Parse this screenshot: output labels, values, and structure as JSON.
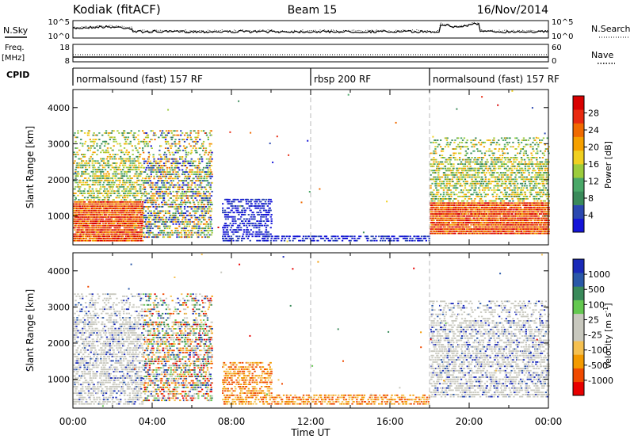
{
  "header": {
    "station": "Kodiak (fitACF)",
    "beam": "Beam 15",
    "date": "16/Nov/2014"
  },
  "top_panels": {
    "nsky": {
      "label": "N.Sky",
      "right_label": "N.Search",
      "ticks_left": [
        "10^5",
        "10^0"
      ],
      "ticks_right": [
        "10^5",
        "10^0"
      ]
    },
    "freq": {
      "label_line1": "Freq.",
      "label_line2": "[MHz]",
      "ticks_left": [
        "18",
        "8"
      ],
      "right_label": "Nave",
      "ticks_right": [
        "60",
        "0"
      ]
    },
    "cpid": {
      "label": "CPID",
      "segments": [
        {
          "name": "normalsound (fast) 157 RF",
          "start_hour": 0,
          "end_hour": 12
        },
        {
          "name": "rbsp 200 RF",
          "start_hour": 12,
          "end_hour": 18
        },
        {
          "name": "normalsound (fast) 157 RF",
          "start_hour": 18,
          "end_hour": 24
        }
      ]
    }
  },
  "time_axis": {
    "xlabel": "Time UT",
    "ticks": [
      "00:00",
      "04:00",
      "08:00",
      "12:00",
      "16:00",
      "20:00",
      "00:00"
    ],
    "range_hours": [
      0,
      24
    ]
  },
  "colors": {
    "power": [
      "#1414d8",
      "#2b48b0",
      "#3a8a5a",
      "#4aa868",
      "#9ccc3c",
      "#f0d020",
      "#f5a000",
      "#f06a00",
      "#e82a10",
      "#d80000"
    ],
    "velocity": [
      "#e80000",
      "#f04a00",
      "#f39a00",
      "#f5c050",
      "#c8c8be",
      "#c8c8be",
      "#64c850",
      "#3a8a5a",
      "#2a58a8",
      "#1a2ab8"
    ],
    "dashed_line": "#b8b8b8"
  },
  "chart_data": [
    {
      "type": "heatmap",
      "title": "Power",
      "ylabel": "Slant Range [km]",
      "ylim": [
        200,
        4500
      ],
      "yticks": [
        "1000",
        "2000",
        "3000",
        "4000"
      ],
      "colorbar": {
        "label": "Power [dB]",
        "range": [
          0,
          32
        ],
        "ticks": [
          "4",
          "8",
          "12",
          "16",
          "20",
          "24",
          "28"
        ]
      },
      "regions": [
        {
          "t": [
            0.0,
            3.5
          ],
          "range_km": [
            300,
            3400
          ],
          "level": "mixed-high"
        },
        {
          "t": [
            3.5,
            7.0
          ],
          "range_km": [
            400,
            3400
          ],
          "level": "mixed"
        },
        {
          "t": [
            7.5,
            10.0
          ],
          "range_km": [
            300,
            1500
          ],
          "level": "low"
        },
        {
          "t": [
            10.0,
            18.0
          ],
          "range_km": [
            300,
            600
          ],
          "level": "low"
        },
        {
          "t": [
            18.0,
            24.0
          ],
          "range_km": [
            500,
            3200
          ],
          "level": "mixed-high"
        }
      ]
    },
    {
      "type": "heatmap",
      "title": "Velocity",
      "ylabel": "Slant Range [km]",
      "ylim": [
        200,
        4500
      ],
      "yticks": [
        "1000",
        "2000",
        "3000",
        "4000"
      ],
      "colorbar": {
        "label": "Velocity [m s^-1]",
        "ticks": [
          "1000",
          "500",
          "100",
          "25",
          "-25",
          "-100",
          "-500",
          "-1000"
        ]
      },
      "regions": [
        {
          "t": [
            0.0,
            3.5
          ],
          "range_km": [
            300,
            3400
          ],
          "level": "near-zero"
        },
        {
          "t": [
            3.5,
            7.0
          ],
          "range_km": [
            400,
            3400
          ],
          "level": "mixed"
        },
        {
          "t": [
            7.5,
            10.0
          ],
          "range_km": [
            300,
            1500
          ],
          "level": "negative"
        },
        {
          "t": [
            10.0,
            18.0
          ],
          "range_km": [
            300,
            600
          ],
          "level": "negative"
        },
        {
          "t": [
            18.0,
            24.0
          ],
          "range_km": [
            500,
            3200
          ],
          "level": "near-zero"
        }
      ]
    }
  ]
}
